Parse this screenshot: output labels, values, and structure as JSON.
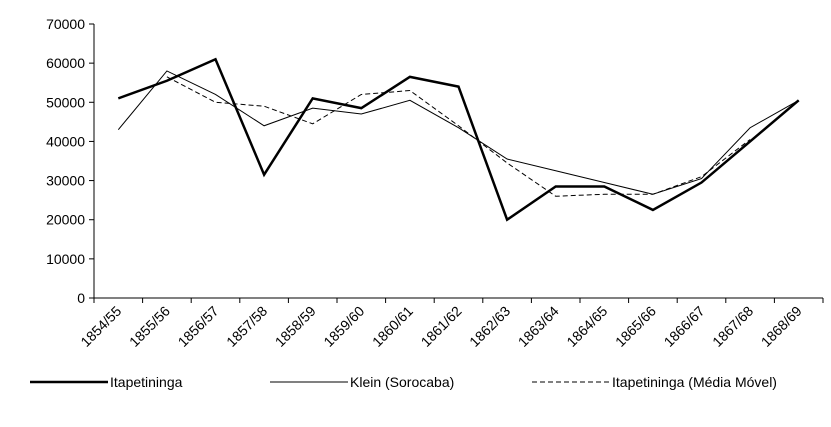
{
  "chart_data": {
    "type": "line",
    "categories": [
      "1854/55",
      "1855/56",
      "1856/57",
      "1857/58",
      "1858/59",
      "1859/60",
      "1860/61",
      "1861/62",
      "1862/63",
      "1863/64",
      "1864/65",
      "1865/66",
      "1866/67",
      "1867/68",
      "1868/69"
    ],
    "series": [
      {
        "name": "Itapetininga",
        "color": "#000000",
        "width": 2.5,
        "dash": "solid",
        "values": [
          51000,
          55500,
          61000,
          31500,
          51000,
          48500,
          56500,
          54000,
          20000,
          28500,
          28500,
          22500,
          29500,
          40000,
          50500
        ]
      },
      {
        "name": "Klein (Sorocaba)",
        "color": "#000000",
        "width": 1,
        "dash": "solid",
        "values": [
          43000,
          58000,
          52000,
          44000,
          48500,
          47000,
          50500,
          43500,
          35500,
          32500,
          29500,
          26500,
          30500,
          43500,
          50500
        ]
      },
      {
        "name": "Itapetininga (Média Móvel)",
        "color": "#000000",
        "width": 1,
        "dash": "dashed",
        "values": [
          null,
          56500,
          50000,
          49000,
          44500,
          52000,
          53000,
          44000,
          34500,
          26000,
          26500,
          26500,
          31000,
          40500,
          null
        ]
      }
    ],
    "ylim": [
      0,
      70000
    ],
    "yticks": [
      0,
      10000,
      20000,
      30000,
      40000,
      50000,
      60000,
      70000
    ],
    "grid": false,
    "legend": "bottom"
  }
}
